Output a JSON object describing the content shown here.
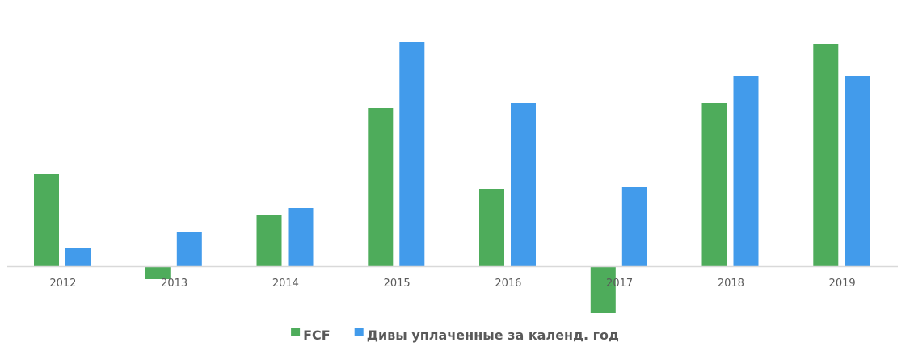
{
  "chart_data": {
    "type": "bar",
    "title": "",
    "xlabel": "",
    "ylabel": "",
    "categories": [
      "2012",
      "2013",
      "2014",
      "2015",
      "2016",
      "2017",
      "2018",
      "2019"
    ],
    "series": [
      {
        "name": "FCF",
        "color": "#4EAC5B",
        "values": [
          114,
          -16,
          64,
          196,
          96,
          -58,
          202,
          276
        ]
      },
      {
        "name": "Дивы уплаченные за календ. год",
        "color": "#429BEB",
        "values": [
          22,
          42,
          72,
          278,
          202,
          98,
          236,
          236
        ]
      }
    ],
    "ylim": [
      -110,
      300
    ],
    "grid": false,
    "legend_position": "bottom",
    "axis_color": "#D9D9D9",
    "text_color": "#595959"
  }
}
